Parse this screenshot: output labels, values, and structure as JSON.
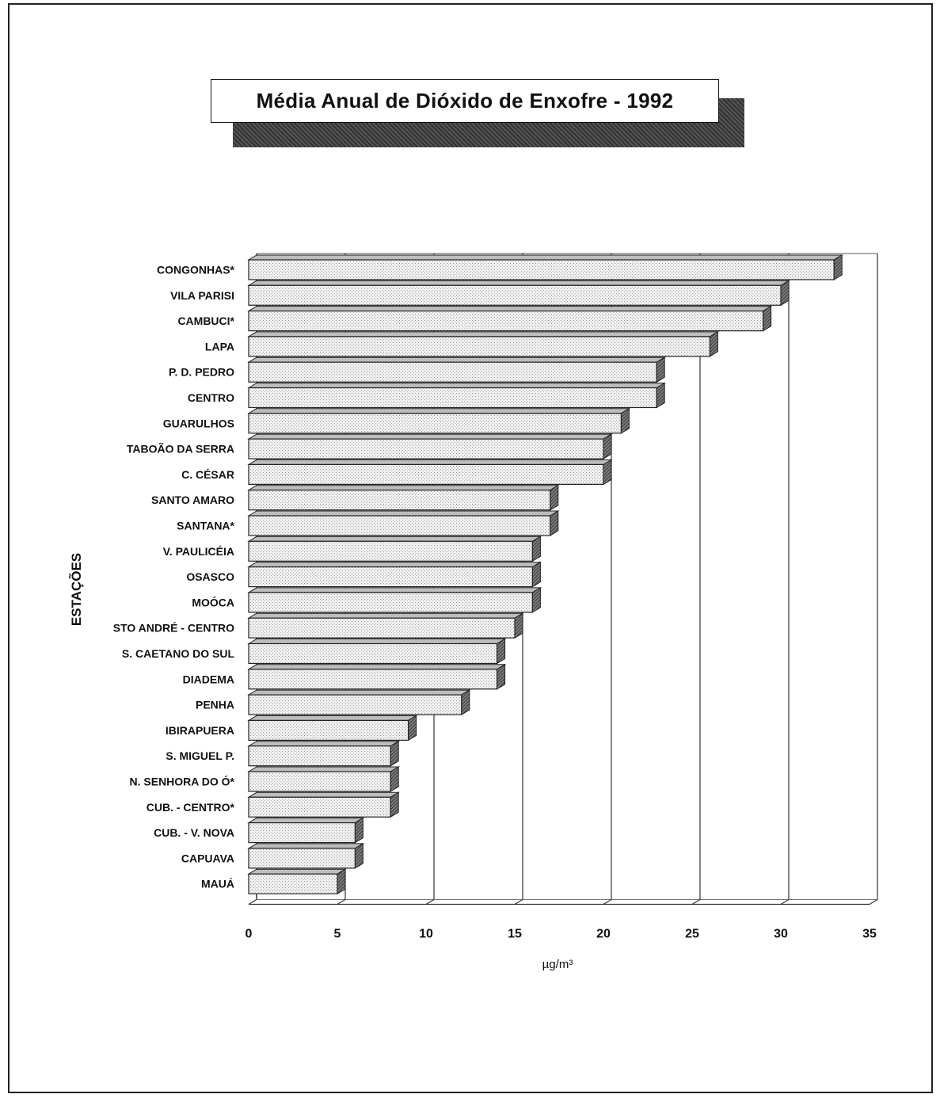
{
  "chart_data": {
    "type": "bar",
    "orientation": "horizontal",
    "title": "Média Anual de Dióxido de Enxofre - 1992",
    "xlabel": "µg/m³",
    "ylabel": "ESTAÇÕES",
    "xlim": [
      0,
      35
    ],
    "xticks": [
      "0",
      "5",
      "10",
      "15",
      "20",
      "25",
      "30",
      "35"
    ],
    "grid": true,
    "categories": [
      "CONGONHAS*",
      "VILA PARISI",
      "CAMBUCI*",
      "LAPA",
      "P. D. PEDRO",
      "CENTRO",
      "GUARULHOS",
      "TABOÃO DA SERRA",
      "C. CÉSAR",
      "SANTO AMARO",
      "SANTANA*",
      "V. PAULICÉIA",
      "OSASCO",
      "MOÓCA",
      "STO ANDRÉ - CENTRO",
      "S. CAETANO DO SUL",
      "DIADEMA",
      "PENHA",
      "IBIRAPUERA",
      "S. MIGUEL P.",
      "N. SENHORA DO Ó*",
      "CUB. - CENTRO*",
      "CUB. - V. NOVA",
      "CAPUAVA",
      "MAUÁ"
    ],
    "values": [
      33,
      30,
      29,
      26,
      23,
      23,
      21,
      20,
      20,
      17,
      17,
      16,
      16,
      16,
      15,
      14,
      14,
      12,
      9,
      8,
      8,
      8,
      6,
      6,
      5
    ]
  }
}
